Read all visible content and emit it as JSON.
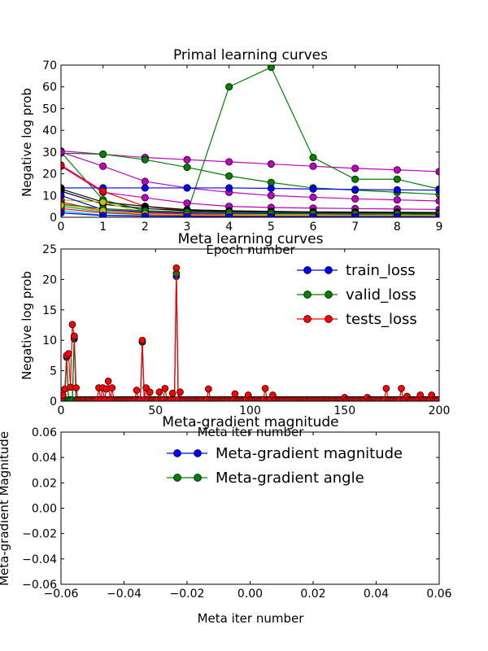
{
  "chart_data": [
    {
      "type": "line",
      "title": "Primal learning curves",
      "xlabel": "Epoch number",
      "ylabel": "Negative log prob",
      "xlim": [
        0,
        9
      ],
      "ylim": [
        0,
        70
      ],
      "xticks": [
        0,
        1,
        2,
        3,
        4,
        5,
        6,
        7,
        8,
        9
      ],
      "yticks": [
        0,
        10,
        20,
        30,
        40,
        50,
        60,
        70
      ],
      "grid": false,
      "x": [
        0,
        1,
        2,
        3,
        4,
        5,
        6,
        7,
        8,
        9
      ],
      "series": [
        {
          "color": "#bf00bf",
          "values": [
            30.5,
            29,
            27.5,
            26.5,
            25.5,
            24.5,
            23.5,
            22.5,
            21.8,
            21
          ]
        },
        {
          "color": "#008000",
          "values": [
            30,
            8,
            3,
            2,
            60,
            69,
            27.5,
            17.5,
            17.5,
            13
          ]
        },
        {
          "color": "#008000",
          "values": [
            29.5,
            29,
            26.5,
            23,
            19,
            16,
            13.5,
            12.5,
            11.5,
            10.5
          ]
        },
        {
          "color": "#bf00bf",
          "values": [
            30,
            23.5,
            16.5,
            13.5,
            11.5,
            10,
            9.2,
            8.5,
            8,
            7.5
          ]
        },
        {
          "color": "#0000ff",
          "values": [
            13.5,
            13.5,
            13.5,
            13.5,
            13.5,
            13.3,
            13,
            12.8,
            12.6,
            12.5
          ]
        },
        {
          "color": "#bf00bf",
          "values": [
            23.5,
            11.5,
            9,
            6.5,
            5,
            4.5,
            4.2,
            4,
            3.8,
            3.6
          ]
        },
        {
          "color": "#ff0000",
          "values": [
            24,
            12,
            5,
            3,
            2.5,
            2.2,
            2,
            1.9,
            1.8,
            1.7
          ]
        },
        {
          "color": "#000000",
          "values": [
            13,
            7,
            5,
            3.5,
            3,
            2.7,
            2.5,
            2.4,
            2.3,
            2.2
          ]
        },
        {
          "color": "#000000",
          "values": [
            12,
            6,
            4,
            3,
            2.6,
            2.3,
            2.1,
            2,
            1.9,
            1.8
          ]
        },
        {
          "color": "#bfbf00",
          "values": [
            8,
            7,
            2,
            1.5,
            1.4,
            1.3,
            1.2,
            1.2,
            1.1,
            1.1
          ]
        },
        {
          "color": "#0000ff",
          "values": [
            10,
            3.5,
            2.5,
            2,
            1.8,
            1.7,
            1.6,
            1.5,
            1.5,
            1.4
          ]
        },
        {
          "color": "#00bfbf",
          "values": [
            5,
            2.5,
            1.5,
            1,
            0.9,
            0.8,
            0.8,
            0.7,
            0.7,
            0.7
          ]
        },
        {
          "color": "#00bfbf",
          "values": [
            3,
            1,
            0.7,
            0.5,
            0.4,
            0.4,
            0.35,
            0.3,
            0.3,
            0.3
          ]
        },
        {
          "color": "#ff0000",
          "values": [
            7,
            3,
            2,
            1.5,
            1.2,
            1,
            0.9,
            0.9,
            0.8,
            0.8
          ]
        },
        {
          "color": "#008000",
          "values": [
            6,
            4,
            3,
            2.5,
            2.2,
            2,
            1.8,
            1.7,
            1.6,
            1.5
          ]
        },
        {
          "color": "#ff0000",
          "values": [
            4,
            2,
            1.2,
            0.9,
            0.8,
            0.7,
            0.6,
            0.6,
            0.5,
            0.5
          ]
        },
        {
          "color": "#bfbf00",
          "values": [
            5.5,
            3,
            1.5,
            1.1,
            1,
            0.9,
            0.9,
            0.8,
            0.8,
            0.8
          ]
        },
        {
          "color": "#0000ff",
          "values": [
            2,
            0.8,
            0.5,
            0.4,
            0.3,
            0.3,
            0.3,
            0.3,
            0.3,
            0.3
          ]
        }
      ]
    },
    {
      "type": "line",
      "title": "Meta learning curves",
      "xlabel": "Meta iter number",
      "ylabel": "Negative log prob",
      "xlim": [
        0,
        200
      ],
      "ylim": [
        0,
        25
      ],
      "xticks": [
        0,
        50,
        100,
        150,
        200
      ],
      "yticks": [
        0,
        5,
        10,
        15,
        20,
        25
      ],
      "grid": false,
      "legend_position": "top-right",
      "legend": [
        "train_loss",
        "valid_loss",
        "tests_loss"
      ],
      "series": [
        {
          "name": "train_loss",
          "color": "#0000ff",
          "spikes": [
            [
              3,
              7.2
            ],
            [
              7,
              10.2
            ],
            [
              43,
              9.7
            ],
            [
              61,
              20.5
            ]
          ]
        },
        {
          "name": "valid_loss",
          "color": "#008000",
          "spikes": [
            [
              3,
              7.5
            ],
            [
              7,
              10.5
            ],
            [
              43,
              9.8
            ],
            [
              61,
              21
            ]
          ]
        },
        {
          "name": "tests_loss",
          "color": "#ff0000",
          "spikes": [
            [
              1,
              1
            ],
            [
              2,
              2
            ],
            [
              3,
              7.5
            ],
            [
              4,
              7.8
            ],
            [
              5,
              2.3
            ],
            [
              6,
              12.6
            ],
            [
              7,
              10.7
            ],
            [
              8,
              2.2
            ],
            [
              20,
              2.2
            ],
            [
              22,
              2.2
            ],
            [
              24,
              2.0
            ],
            [
              25,
              3.3
            ],
            [
              27,
              2.2
            ],
            [
              40,
              1.8
            ],
            [
              43,
              10
            ],
            [
              45,
              2.2
            ],
            [
              47,
              1.5
            ],
            [
              52,
              1.5
            ],
            [
              55,
              2.1
            ],
            [
              59,
              1.3
            ],
            [
              61,
              21.9
            ],
            [
              63,
              1.5
            ],
            [
              78,
              2.0
            ],
            [
              92,
              1.2
            ],
            [
              99,
              1.0
            ],
            [
              108,
              2.1
            ],
            [
              112,
              1.0
            ],
            [
              150,
              0.6
            ],
            [
              162,
              0.6
            ],
            [
              172,
              2.1
            ],
            [
              180,
              2.1
            ],
            [
              183,
              0.8
            ],
            [
              190,
              1.0
            ],
            [
              196,
              1.0
            ]
          ]
        }
      ]
    },
    {
      "type": "line",
      "title": "Meta-gradient magnitude",
      "xlabel": "Meta iter number",
      "ylabel": "Meta-gradient Magnitude",
      "xlim": [
        -0.06,
        0.06
      ],
      "ylim": [
        -0.06,
        0.06
      ],
      "xticks": [
        "−0.06",
        "−0.04",
        "−0.02",
        "0.00",
        "0.02",
        "0.04",
        "0.06"
      ],
      "yticks": [
        "0.06",
        "0.04",
        "0.02",
        "0.00",
        "−0.02",
        "−0.04",
        "−0.06"
      ],
      "grid": false,
      "legend_position": "top-right",
      "legend": [
        "Meta-gradient magnitude",
        "Meta-gradient angle"
      ],
      "series": [
        {
          "name": "Meta-gradient magnitude",
          "color": "#0000ff",
          "values": []
        },
        {
          "name": "Meta-gradient angle",
          "color": "#008000",
          "values": []
        }
      ]
    }
  ]
}
